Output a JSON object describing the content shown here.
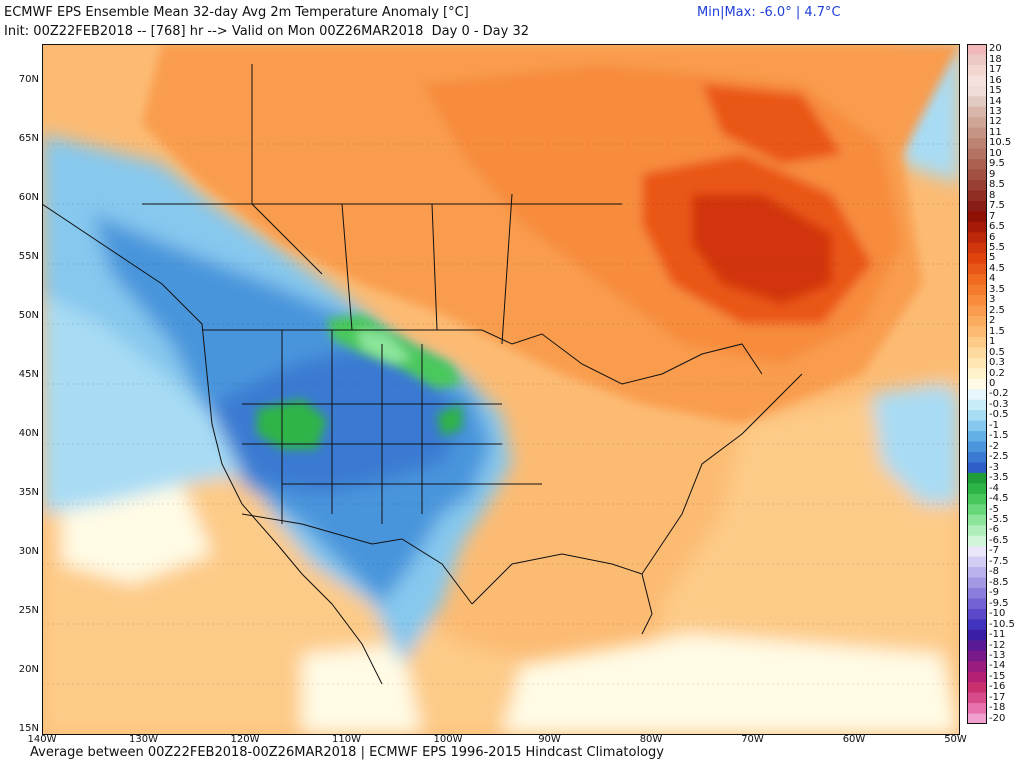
{
  "header": {
    "title": "ECMWF EPS Ensemble Mean 32-day Avg 2m Temperature Anomaly [°C]",
    "init": "Init: 00Z22FEB2018 -- [768] hr --> Valid on Mon 00Z26MAR2018  Day 0 - Day 32",
    "minmax": "Min|Max: -6.0° | 4.7°C"
  },
  "footer": "Average between 00Z22FEB2018-00Z26MAR2018 | ECMWF EPS 1996-2015 Hindcast Climatology",
  "map": {
    "lat_labels": [
      "70N",
      "65N",
      "60N",
      "55N",
      "50N",
      "45N",
      "40N",
      "35N",
      "30N",
      "25N",
      "20N",
      "15N"
    ],
    "lon_labels": [
      "140W",
      "130W",
      "120W",
      "110W",
      "100W",
      "90W",
      "80W",
      "70W",
      "60W",
      "50W"
    ]
  },
  "colorbar": {
    "labels": [
      "20",
      "18",
      "17",
      "16",
      "15",
      "14",
      "13",
      "12",
      "11",
      "10.5",
      "10",
      "9.5",
      "9",
      "8.5",
      "8",
      "7.5",
      "7",
      "6.5",
      "6",
      "5.5",
      "5",
      "4.5",
      "4",
      "3.5",
      "3",
      "2.5",
      "2",
      "1.5",
      "1",
      "0.5",
      "0.3",
      "0.2",
      "0",
      "-0.2",
      "-0.3",
      "-0.5",
      "-1",
      "-1.5",
      "-2",
      "-2.5",
      "-3",
      "-3.5",
      "-4",
      "-4.5",
      "-5",
      "-5.5",
      "-6",
      "-6.5",
      "-7",
      "-7.5",
      "-8",
      "-8.5",
      "-9",
      "-9.5",
      "-10",
      "-10.5",
      "-11",
      "-12",
      "-13",
      "-14",
      "-15",
      "-16",
      "-17",
      "-18",
      "-20"
    ],
    "colors": [
      "#f0b8b8",
      "#ecc8c4",
      "#f2d6d0",
      "#f6e2dc",
      "#eeddd8",
      "#e2cbc2",
      "#d8b7aa",
      "#cfa596",
      "#c69484",
      "#bd8372",
      "#b47262",
      "#ab6152",
      "#a25042",
      "#993f33",
      "#902e24",
      "#871d16",
      "#8f1005",
      "#a61b07",
      "#bd280a",
      "#d2360c",
      "#e1440f",
      "#ea5616",
      "#f06a20",
      "#f47b2c",
      "#f78c3c",
      "#f99c4d",
      "#fbac60",
      "#fcbb73",
      "#fdcb88",
      "#fdda9d",
      "#fee7b3",
      "#fff3cc",
      "#fffbe5",
      "#e6f6fb",
      "#c8ecf8",
      "#a8dcf4",
      "#86c8ee",
      "#64b0e6",
      "#4a95dc",
      "#3b7ad2",
      "#2f5fc6",
      "#1f9e3a",
      "#2db446",
      "#48c85c",
      "#68d77a",
      "#8be49a",
      "#aeeebb",
      "#cff6d8",
      "#e8e6f8",
      "#d2cdf2",
      "#bab2ec",
      "#a298e4",
      "#8a7ddc",
      "#7263d2",
      "#5a49c8",
      "#4233be",
      "#3a1ea6",
      "#5a1a96",
      "#7a1a8a",
      "#9a1c7e",
      "#b41f74",
      "#c9306e",
      "#d94c8c",
      "#e672ab",
      "#f0a0cc"
    ]
  }
}
